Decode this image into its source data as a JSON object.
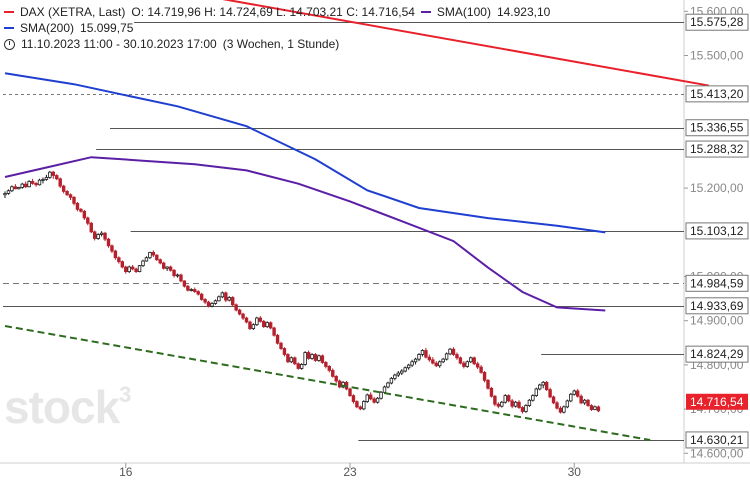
{
  "legend": {
    "dax_label": "DAX (XETRA, Last)",
    "dax_ohlc": "O: 14.719,96  H: 14.724,69  L: 14.703,21  C: 14.716,54",
    "sma100_label": "SMA(100)",
    "sma100_value": "14.923,10",
    "sma200_label": "SMA(200)",
    "sma200_value": "15.099,75",
    "range_text": "11.10.2023 11:00 - 30.10.2023 17:00",
    "range_detail": "(3 Wochen, 1 Stunde)"
  },
  "watermark": {
    "text": "stock",
    "super": "3"
  },
  "colors": {
    "sma100": "#5b1fa6",
    "sma200": "#1f3fd1",
    "trend_red": "#e8212b",
    "trend_green": "#2e6b1f",
    "up": "#1a1a1a",
    "down": "#b5202c",
    "level": "#555555",
    "last_price_bg": "#e8212b"
  },
  "chart_data": {
    "type": "candlestick",
    "ylim": [
      14578,
      15612
    ],
    "y_ticks": [
      "15.600,00",
      "15.500,00",
      "15.200,00",
      "15.000,00",
      "14.900,00",
      "14.800,00",
      "14.700,00",
      "14.600,00"
    ],
    "x_ticks": [
      {
        "label": "16",
        "bar": 35
      },
      {
        "label": "23",
        "bar": 100
      },
      {
        "label": "30",
        "bar": 165
      }
    ],
    "levels": [
      {
        "label": "15.575,28",
        "value": 15575.28,
        "from_bar": 38,
        "dashed": false
      },
      {
        "label": "15.413,20",
        "value": 15413.2,
        "from_bar": 0,
        "dashed": true
      },
      {
        "label": "15.336,55",
        "value": 15336.55,
        "from_bar": 31,
        "dashed": false
      },
      {
        "label": "15.288,32",
        "value": 15288.32,
        "from_bar": 27,
        "dashed": false
      },
      {
        "label": "15.103,12",
        "value": 15103.12,
        "from_bar": 37,
        "dashed": false
      },
      {
        "label": "14.984,59",
        "value": 14984.59,
        "from_bar": 0,
        "dashed": true
      },
      {
        "label": "14.933,69",
        "value": 14933.69,
        "from_bar": 0,
        "dashed": false
      },
      {
        "label": "14.824,29",
        "value": 14824.29,
        "from_bar": 156,
        "dashed": false
      },
      {
        "label": "14.630,21",
        "value": 14630.21,
        "from_bar": 103,
        "dashed": false
      }
    ],
    "last_price": {
      "label": "14.716,54",
      "value": 14716.54
    },
    "sma100": [
      {
        "bar": 0,
        "v": 15225
      },
      {
        "bar": 15,
        "v": 15252
      },
      {
        "bar": 25,
        "v": 15270
      },
      {
        "bar": 40,
        "v": 15262
      },
      {
        "bar": 55,
        "v": 15254
      },
      {
        "bar": 70,
        "v": 15240
      },
      {
        "bar": 85,
        "v": 15210
      },
      {
        "bar": 100,
        "v": 15170
      },
      {
        "bar": 115,
        "v": 15125
      },
      {
        "bar": 130,
        "v": 15080
      },
      {
        "bar": 140,
        "v": 15020
      },
      {
        "bar": 150,
        "v": 14965
      },
      {
        "bar": 160,
        "v": 14930
      },
      {
        "bar": 174,
        "v": 14923.1
      }
    ],
    "sma200": [
      {
        "bar": 0,
        "v": 15460
      },
      {
        "bar": 20,
        "v": 15435
      },
      {
        "bar": 35,
        "v": 15410
      },
      {
        "bar": 50,
        "v": 15385
      },
      {
        "bar": 70,
        "v": 15340
      },
      {
        "bar": 90,
        "v": 15265
      },
      {
        "bar": 105,
        "v": 15195
      },
      {
        "bar": 120,
        "v": 15155
      },
      {
        "bar": 140,
        "v": 15132
      },
      {
        "bar": 160,
        "v": 15115
      },
      {
        "bar": 174,
        "v": 15099.75
      }
    ],
    "trend_red": [
      {
        "bar": 60,
        "v": 15632
      },
      {
        "bar": 204,
        "v": 15432
      }
    ],
    "trend_green": [
      {
        "bar": 0,
        "v": 14888
      },
      {
        "bar": 187,
        "v": 14630
      }
    ],
    "candles": [
      [
        14.0,
        14.5,
        13.5,
        14.2
      ],
      [
        14.2,
        14.8,
        14.0,
        14.6
      ],
      [
        14.6,
        15.4,
        14.4,
        15.2
      ],
      [
        15.2,
        15.6,
        14.8,
        14.9
      ],
      [
        14.9,
        15.2,
        14.8,
        15.1
      ],
      [
        15.1,
        15.8,
        14.9,
        15.6
      ],
      [
        15.6,
        16.0,
        15.0,
        15.2
      ],
      [
        15.2,
        16.2,
        15.1,
        16.0
      ],
      [
        16.0,
        16.4,
        15.5,
        15.7
      ],
      [
        15.7,
        15.9,
        15.2,
        15.5
      ],
      [
        15.5,
        16.4,
        15.4,
        16.2
      ],
      [
        16.2,
        16.6,
        15.7,
        16.3
      ],
      [
        16.3,
        17.0,
        16.1,
        16.6
      ],
      [
        16.6,
        17.6,
        16.4,
        17.4
      ],
      [
        17.4,
        17.6,
        16.4,
        16.9
      ],
      [
        16.9,
        17.1,
        16.2,
        16.4
      ],
      [
        16.4,
        16.6,
        15.0,
        15.3
      ],
      [
        15.3,
        15.5,
        14.2,
        14.5
      ],
      [
        14.5,
        14.7,
        13.8,
        14.0
      ],
      [
        14.0,
        14.2,
        13.2,
        13.6
      ],
      [
        13.6,
        13.8,
        12.4,
        12.7
      ],
      [
        12.7,
        12.9,
        11.5,
        11.8
      ],
      [
        11.8,
        12.0,
        11.3,
        11.5
      ],
      [
        11.5,
        11.7,
        10.2,
        10.5
      ],
      [
        10.5,
        10.7,
        9.4,
        9.7
      ],
      [
        9.7,
        9.9,
        8.2,
        8.4
      ],
      [
        8.4,
        8.6,
        7.1,
        7.4
      ],
      [
        7.4,
        8.2,
        7.2,
        8.0
      ],
      [
        8.0,
        8.5,
        7.7,
        8.2
      ],
      [
        8.2,
        8.4,
        7.0,
        7.3
      ],
      [
        7.3,
        7.5,
        6.0,
        6.3
      ],
      [
        6.3,
        6.5,
        5.2,
        5.5
      ],
      [
        5.5,
        5.7,
        4.2,
        4.5
      ],
      [
        4.5,
        4.7,
        3.6,
        3.9
      ],
      [
        3.9,
        4.1,
        2.9,
        3.1
      ],
      [
        3.1,
        3.3,
        2.1,
        2.4
      ],
      [
        2.4,
        3.3,
        2.2,
        3.1
      ],
      [
        3.1,
        3.4,
        2.6,
        2.8
      ],
      [
        2.8,
        3.0,
        2.2,
        2.4
      ],
      [
        2.4,
        3.4,
        2.3,
        3.3
      ],
      [
        3.3,
        4.2,
        3.1,
        4.0
      ],
      [
        4.0,
        4.7,
        3.9,
        4.5
      ],
      [
        4.5,
        5.4,
        4.3,
        5.3
      ],
      [
        5.3,
        5.6,
        4.6,
        4.9
      ],
      [
        4.9,
        5.0,
        4.0,
        4.2
      ],
      [
        4.2,
        4.4,
        3.5,
        3.7
      ],
      [
        3.7,
        3.9,
        2.7,
        2.9
      ],
      [
        2.9,
        3.2,
        2.5,
        3.1
      ],
      [
        3.1,
        3.3,
        2.4,
        2.6
      ],
      [
        2.6,
        2.8,
        1.5,
        1.8
      ],
      [
        1.8,
        2.1,
        1.5,
        1.9
      ],
      [
        1.9,
        2.1,
        0.8,
        1.0
      ],
      [
        1.0,
        1.1,
        0.0,
        0.2
      ],
      [
        0.2,
        0.4,
        -0.6,
        -0.4
      ],
      [
        -0.4,
        -0.1,
        -0.6,
        -0.3
      ],
      [
        -0.3,
        0.0,
        -0.8,
        -0.6
      ],
      [
        -0.6,
        -0.4,
        -1.2,
        -1.0
      ],
      [
        -1.0,
        -0.8,
        -2.0,
        -1.8
      ],
      [
        -1.8,
        -1.6,
        -2.5,
        -2.2
      ],
      [
        -2.2,
        -2.0,
        -3.0,
        -2.8
      ],
      [
        -2.8,
        -2.2,
        -3.0,
        -2.4
      ],
      [
        -2.4,
        -1.8,
        -2.6,
        -2.0
      ],
      [
        -2.0,
        -1.2,
        -2.1,
        -1.4
      ],
      [
        -1.4,
        -0.6,
        -1.6,
        -0.8
      ],
      [
        -0.8,
        -0.6,
        -2.2,
        -1.9
      ],
      [
        -1.9,
        -1.3,
        -2.1,
        -1.5
      ],
      [
        -1.5,
        -1.3,
        -2.8,
        -2.6
      ],
      [
        -2.6,
        -2.4,
        -3.6,
        -3.4
      ],
      [
        -3.4,
        -3.2,
        -4.2,
        -4.0
      ],
      [
        -4.0,
        -3.8,
        -4.9,
        -4.6
      ],
      [
        -4.6,
        -4.4,
        -5.4,
        -5.2
      ],
      [
        -5.2,
        -5.0,
        -6.4,
        -6.2
      ],
      [
        -6.2,
        -5.4,
        -6.4,
        -5.6
      ],
      [
        -5.6,
        -4.4,
        -5.8,
        -4.6
      ],
      [
        -4.6,
        -4.3,
        -5.3,
        -5.1
      ],
      [
        -5.1,
        -4.9,
        -6.1,
        -5.9
      ],
      [
        -5.9,
        -5.1,
        -6.1,
        -5.3
      ],
      [
        -5.3,
        -5.1,
        -6.3,
        -6.1
      ],
      [
        -6.1,
        -5.9,
        -7.4,
        -7.2
      ],
      [
        -7.2,
        -7.0,
        -8.6,
        -8.4
      ],
      [
        -8.4,
        -8.2,
        -9.4,
        -9.2
      ],
      [
        -9.2,
        -9.0,
        -10.4,
        -10.1
      ],
      [
        -10.1,
        -9.9,
        -11.4,
        -11.2
      ],
      [
        -11.2,
        -10.4,
        -11.4,
        -10.6
      ],
      [
        -10.6,
        -10.4,
        -11.7,
        -11.5
      ],
      [
        -11.5,
        -11.3,
        -12.4,
        -12.2
      ],
      [
        -12.2,
        -11.4,
        -12.4,
        -11.6
      ],
      [
        -11.6,
        -9.6,
        -11.8,
        -9.8
      ],
      [
        -9.8,
        -9.5,
        -10.9,
        -10.7
      ],
      [
        -10.7,
        -9.9,
        -10.9,
        -10.1
      ],
      [
        -10.1,
        -9.9,
        -11.2,
        -11.0
      ],
      [
        -11.0,
        -10.1,
        -11.2,
        -10.3
      ],
      [
        -10.3,
        -10.1,
        -11.5,
        -11.3
      ],
      [
        -11.3,
        -11.1,
        -12.2,
        -11.9
      ],
      [
        -11.9,
        -11.7,
        -12.8,
        -12.5
      ],
      [
        -12.5,
        -12.2,
        -13.6,
        -13.4
      ],
      [
        -13.4,
        -13.2,
        -14.4,
        -14.1
      ],
      [
        -14.1,
        -13.9,
        -15.2,
        -15.0
      ],
      [
        -15.0,
        -14.1,
        -15.2,
        -14.3
      ],
      [
        -14.3,
        -14.1,
        -15.5,
        -15.3
      ],
      [
        -15.3,
        -15.1,
        -16.5,
        -16.3
      ],
      [
        -16.3,
        -16.1,
        -17.5,
        -17.2
      ],
      [
        -17.2,
        -17.0,
        -18.2,
        -18.0
      ],
      [
        -18.0,
        -17.8,
        -18.5,
        -18.3
      ],
      [
        -18.3,
        -17.0,
        -18.5,
        -17.2
      ],
      [
        -17.2,
        -16.0,
        -17.4,
        -16.2
      ],
      [
        -16.2,
        -15.8,
        -17.0,
        -16.8
      ],
      [
        -16.8,
        -16.5,
        -17.5,
        -17.3
      ],
      [
        -17.3,
        -16.5,
        -17.5,
        -16.7
      ],
      [
        -16.7,
        -15.6,
        -16.9,
        -15.8
      ],
      [
        -15.8,
        -14.8,
        -16.0,
        -15.0
      ],
      [
        -15.0,
        -14.2,
        -15.2,
        -14.4
      ],
      [
        -14.4,
        -13.5,
        -14.6,
        -13.7
      ],
      [
        -13.7,
        -13.0,
        -14.0,
        -13.2
      ],
      [
        -13.2,
        -12.6,
        -13.5,
        -12.9
      ],
      [
        -12.9,
        -12.3,
        -13.2,
        -12.6
      ],
      [
        -12.6,
        -11.9,
        -12.8,
        -12.1
      ],
      [
        -12.1,
        -11.5,
        -12.4,
        -11.7
      ],
      [
        -11.7,
        -10.9,
        -12.0,
        -11.2
      ],
      [
        -11.2,
        -10.6,
        -11.6,
        -10.8
      ],
      [
        -10.8,
        -9.9,
        -11.1,
        -10.1
      ],
      [
        -10.1,
        -9.3,
        -10.4,
        -9.5
      ],
      [
        -9.5,
        -9.1,
        -10.7,
        -10.5
      ],
      [
        -10.5,
        -10.1,
        -11.2,
        -10.9
      ],
      [
        -10.9,
        -10.5,
        -11.6,
        -11.4
      ],
      [
        -11.4,
        -11.1,
        -12.0,
        -11.8
      ],
      [
        -11.8,
        -11.0,
        -12.1,
        -11.2
      ],
      [
        -11.2,
        -10.6,
        -11.4,
        -10.8
      ],
      [
        -10.8,
        -9.8,
        -11.0,
        -10.0
      ],
      [
        -10.0,
        -9.1,
        -10.2,
        -9.3
      ],
      [
        -9.3,
        -9.0,
        -10.3,
        -10.1
      ],
      [
        -10.1,
        -9.8,
        -10.9,
        -10.6
      ],
      [
        -10.6,
        -10.4,
        -11.6,
        -11.4
      ],
      [
        -11.4,
        -11.1,
        -12.2,
        -11.9
      ],
      [
        -11.9,
        -11.0,
        -12.1,
        -11.2
      ],
      [
        -11.2,
        -10.4,
        -11.4,
        -10.6
      ],
      [
        -10.6,
        -10.4,
        -11.7,
        -11.5
      ],
      [
        -11.5,
        -11.2,
        -12.3,
        -12.0
      ],
      [
        -12.0,
        -11.7,
        -13.0,
        -12.8
      ],
      [
        -12.8,
        -12.6,
        -14.3,
        -14.0
      ],
      [
        -14.0,
        -13.8,
        -15.4,
        -15.2
      ],
      [
        -15.2,
        -15.0,
        -16.6,
        -16.4
      ],
      [
        -16.4,
        -16.2,
        -17.9,
        -17.6
      ],
      [
        -17.6,
        -17.3,
        -18.2,
        -17.9
      ],
      [
        -17.9,
        -17.1,
        -18.1,
        -17.3
      ],
      [
        -17.3,
        -16.1,
        -17.5,
        -16.3
      ],
      [
        -16.3,
        -16.1,
        -17.3,
        -17.1
      ],
      [
        -17.1,
        -16.8,
        -18.2,
        -17.9
      ],
      [
        -17.9,
        -17.1,
        -18.1,
        -17.3
      ],
      [
        -17.3,
        -17.0,
        -18.3,
        -18.1
      ],
      [
        -18.1,
        -17.9,
        -19.0,
        -18.7
      ],
      [
        -18.7,
        -17.6,
        -18.9,
        -17.8
      ],
      [
        -17.8,
        -16.8,
        -18.0,
        -17.0
      ],
      [
        -17.0,
        -16.1,
        -17.2,
        -16.3
      ],
      [
        -16.3,
        -15.1,
        -16.5,
        -15.3
      ],
      [
        -15.3,
        -14.5,
        -15.5,
        -14.7
      ],
      [
        -14.7,
        -14.1,
        -15.2,
        -14.3
      ],
      [
        -14.3,
        -14.1,
        -15.6,
        -15.4
      ],
      [
        -15.4,
        -15.1,
        -16.7,
        -16.5
      ],
      [
        -16.5,
        -16.3,
        -17.6,
        -17.4
      ],
      [
        -17.4,
        -17.1,
        -18.4,
        -18.2
      ],
      [
        -18.2,
        -17.9,
        -19.0,
        -18.8
      ],
      [
        -18.8,
        -17.8,
        -19.0,
        -18.0
      ],
      [
        -18.0,
        -16.9,
        -18.2,
        -17.1
      ],
      [
        -17.1,
        -15.9,
        -17.3,
        -16.1
      ],
      [
        -16.1,
        -15.4,
        -16.3,
        -15.6
      ],
      [
        -15.6,
        -15.3,
        -16.6,
        -16.4
      ],
      [
        -16.4,
        -16.1,
        -17.6,
        -17.4
      ],
      [
        -17.4,
        -16.8,
        -17.7,
        -17.0
      ],
      [
        -17.0,
        -16.8,
        -18.0,
        -17.8
      ],
      [
        -17.8,
        -17.6,
        -18.6,
        -18.4
      ],
      [
        -18.4,
        -17.8,
        -18.5,
        -18.0
      ],
      [
        -18.0,
        -17.8,
        -18.8,
        -18.6
      ]
    ]
  }
}
